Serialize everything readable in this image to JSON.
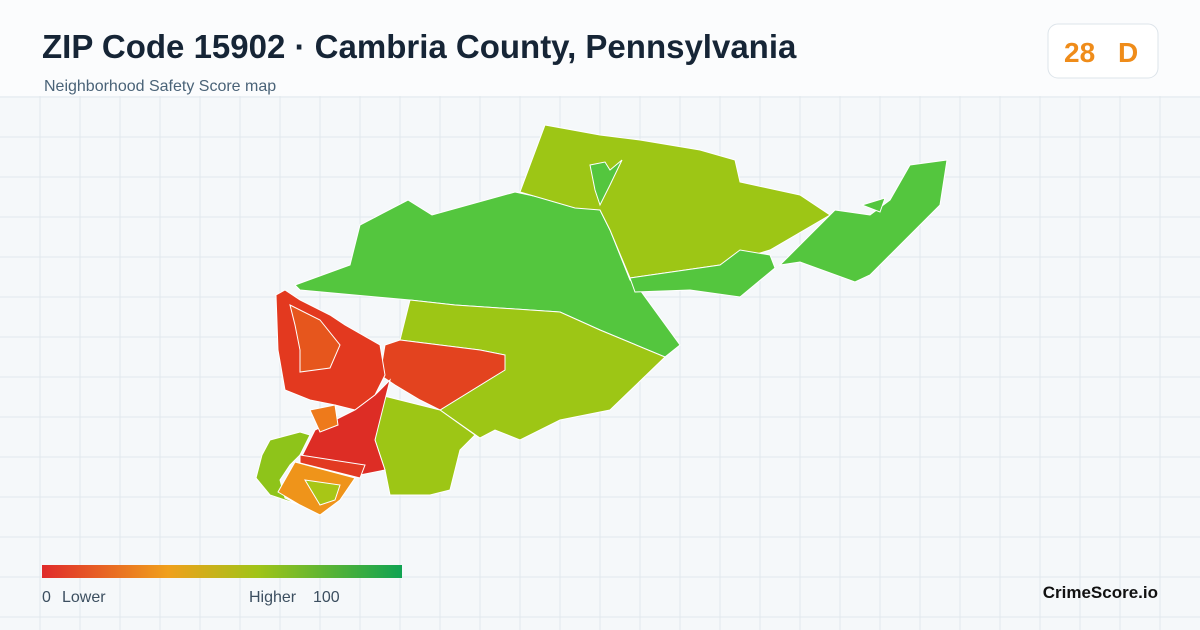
{
  "header": {
    "title": "ZIP Code 15902 · Cambria County, Pennsylvania",
    "subtitle": "Neighborhood Safety Score map"
  },
  "badge": {
    "score": 28,
    "grade": "D"
  },
  "legend": {
    "min": 0,
    "min_label": "Lower",
    "max_label": "Higher",
    "max": 100
  },
  "footer": {
    "brand": "CrimeScore.io"
  }
}
